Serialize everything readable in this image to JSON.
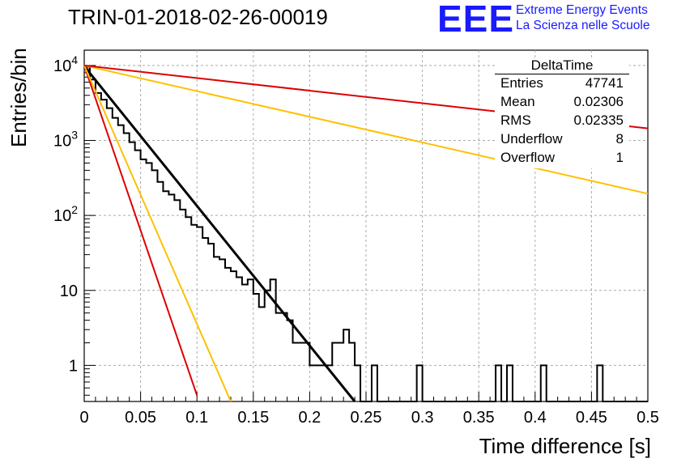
{
  "header": {
    "title": "TRIN-01-2018-02-26-00019",
    "logo_mark": "EEE",
    "logo_line1": "Extreme Energy Events",
    "logo_line2": "La Scienza nelle Scuole"
  },
  "stats": {
    "name": "DeltaTime",
    "rows": [
      {
        "label": "Entries",
        "value": "47741"
      },
      {
        "label": "Mean",
        "value": "0.02306"
      },
      {
        "label": "RMS",
        "value": "0.02335"
      },
      {
        "label": "Underflow",
        "value": "8"
      },
      {
        "label": "Overflow",
        "value": "1"
      }
    ]
  },
  "chart_data": {
    "type": "line",
    "xlabel": "Time difference [s]",
    "ylabel": "Entries/bin",
    "xlim": [
      0,
      0.5
    ],
    "ylog": true,
    "ylim": [
      0.33,
      16000
    ],
    "grid": true,
    "x_ticks": [
      "0",
      "0.05",
      "0.1",
      "0.15",
      "0.2",
      "0.25",
      "0.3",
      "0.35",
      "0.4",
      "0.45",
      "0.5"
    ],
    "y_ticks": [
      "1",
      "10",
      "10^2",
      "10^3",
      "10^4"
    ],
    "histogram": {
      "bin_width": 0.005,
      "counts": [
        9600,
        6500,
        4300,
        3500,
        2700,
        2000,
        1600,
        1250,
        950,
        740,
        560,
        500,
        400,
        280,
        210,
        190,
        160,
        120,
        95,
        75,
        70,
        50,
        42,
        28,
        26,
        20,
        18,
        15,
        12,
        14,
        9,
        6,
        10,
        14,
        5,
        5,
        4,
        2,
        2,
        2,
        1,
        1,
        1,
        1,
        2,
        2,
        3,
        2,
        1,
        0,
        0,
        1,
        0,
        0,
        0,
        0,
        0,
        0,
        0,
        1,
        0,
        0,
        0,
        0,
        0,
        0,
        0,
        0,
        0,
        0,
        0,
        0,
        0,
        1,
        0,
        1,
        0,
        0,
        0,
        0,
        0,
        1,
        0,
        0,
        0,
        0,
        0,
        0,
        0,
        0,
        0,
        1,
        0,
        0,
        0,
        0,
        0,
        0,
        0,
        0
      ]
    },
    "series": [
      {
        "color": "#000000",
        "points": [
          [
            0.0,
            9800
          ],
          [
            0.24,
            0.33
          ]
        ]
      },
      {
        "color": "#dd0000",
        "points": [
          [
            0.0,
            10000
          ],
          [
            0.1,
            0.4
          ]
        ]
      },
      {
        "color": "#ffc000",
        "points": [
          [
            0.0,
            10000
          ],
          [
            0.13,
            0.33
          ]
        ]
      },
      {
        "color": "#ffc000",
        "points": [
          [
            0.0,
            10000
          ],
          [
            0.5,
            195
          ]
        ]
      },
      {
        "color": "#dd0000",
        "points": [
          [
            0.0,
            10000
          ],
          [
            0.5,
            1450
          ]
        ]
      }
    ]
  }
}
